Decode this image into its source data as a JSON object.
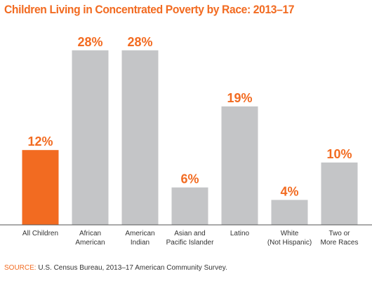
{
  "title": "Children Living in Concentrated Poverty by Race: 2013–17",
  "source": {
    "label": "SOURCE:",
    "text": "U.S. Census Bureau, 2013–17 American Community Survey."
  },
  "colors": {
    "title": "#f26b21",
    "highlight": "#f26b21",
    "bar": "#c4c5c7",
    "axis": "#555555",
    "source_label": "#f26b21"
  },
  "chart_data": {
    "type": "bar",
    "categories": [
      [
        "All Children"
      ],
      [
        "African",
        "American"
      ],
      [
        "American",
        "Indian"
      ],
      [
        "Asian and",
        "Pacific Islander"
      ],
      [
        "Latino"
      ],
      [
        "White",
        "(Not Hispanic)"
      ],
      [
        "Two or",
        "More Races"
      ]
    ],
    "values": [
      12,
      28,
      28,
      6,
      19,
      4,
      10
    ],
    "data_labels": [
      "12%",
      "28%",
      "28%",
      "6%",
      "19%",
      "4%",
      "10%"
    ],
    "highlight_index": 0,
    "title": "Children Living in Concentrated Poverty by Race: 2013–17",
    "xlabel": "",
    "ylabel": "",
    "ylim": [
      0,
      30
    ],
    "grid": false,
    "legend": "none"
  }
}
